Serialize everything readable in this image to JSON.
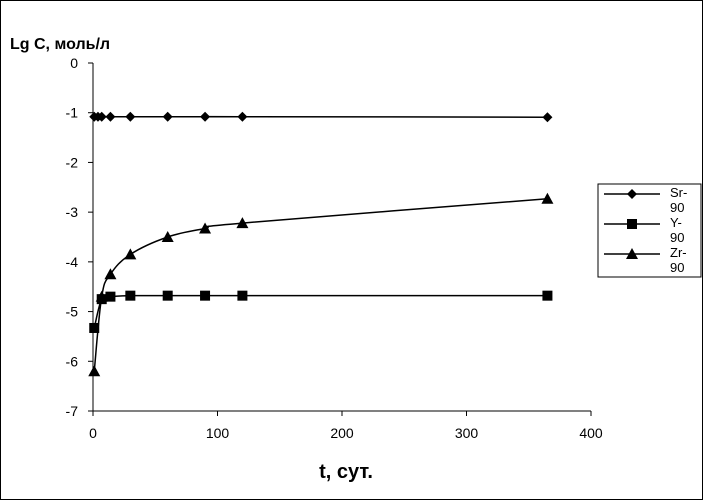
{
  "chart_data": {
    "type": "line",
    "ylabel": "Lg C, моль/л",
    "xlabel": "t, сут.",
    "xlim": [
      0,
      400
    ],
    "ylim": [
      -7,
      0
    ],
    "xticks": [
      "0",
      "100",
      "200",
      "300",
      "400"
    ],
    "yticks": [
      "0",
      "-1",
      "-2",
      "-3",
      "-4",
      "-5",
      "-6",
      "-7"
    ],
    "x": [
      1,
      4,
      7,
      14,
      30,
      60,
      90,
      120,
      365
    ],
    "series": [
      {
        "name": "Sr-90",
        "legend_lines": [
          "Sr-",
          "90"
        ],
        "marker": "diamond",
        "x": [
          1,
          4,
          7,
          14,
          30,
          60,
          90,
          120,
          365
        ],
        "values": [
          -1.08,
          -1.08,
          -1.08,
          -1.08,
          -1.08,
          -1.08,
          -1.08,
          -1.08,
          -1.09
        ]
      },
      {
        "name": "Y-90",
        "legend_lines": [
          "Y-",
          "90"
        ],
        "marker": "square",
        "x": [
          1,
          7,
          14,
          30,
          60,
          90,
          120,
          365
        ],
        "values": [
          -5.33,
          -4.75,
          -4.7,
          -4.68,
          -4.68,
          -4.68,
          -4.68,
          -4.68
        ]
      },
      {
        "name": "Zr-90",
        "legend_lines": [
          "Zr-",
          "90"
        ],
        "marker": "triangle",
        "x": [
          1,
          7,
          14,
          30,
          60,
          90,
          120,
          365
        ],
        "values": [
          -6.2,
          -4.7,
          -4.25,
          -3.85,
          -3.5,
          -3.33,
          -3.22,
          -2.73
        ]
      }
    ]
  }
}
